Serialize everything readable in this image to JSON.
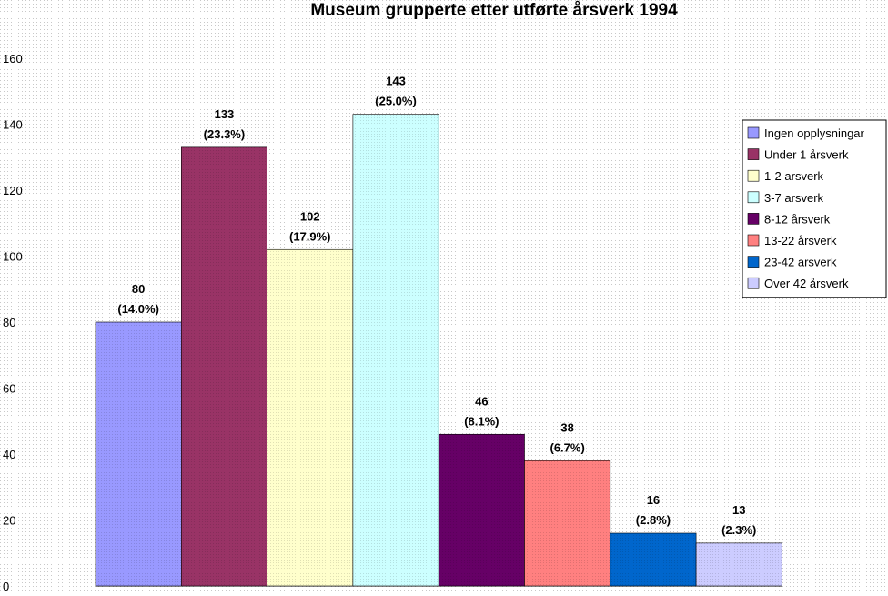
{
  "chart_data": {
    "type": "bar",
    "title": "Museum grupperte etter utførte årsverk 1994",
    "xlabel": "",
    "ylabel": "",
    "ylim": [
      0,
      160
    ],
    "yticks": [
      0,
      20,
      40,
      60,
      80,
      100,
      120,
      140,
      160
    ],
    "grid": "dotted background",
    "legend_position": "right",
    "categories": [
      "Ingen opplysningar",
      "Under 1 årsverk",
      "1-2 arsverk",
      "3-7 arsverk",
      "8-12 årsverk",
      "13-22 årsverk",
      "23-42 arsverk",
      "Over 42 årsverk"
    ],
    "values": [
      80,
      133,
      102,
      143,
      46,
      38,
      16,
      13
    ],
    "percent_labels": [
      "(14.0%)",
      "(23.3%)",
      "(17.9%)",
      "(25.0%)",
      "(8.1%)",
      "(6.7%)",
      "(2.8%)",
      "(2.3%)"
    ],
    "colors": [
      "#9999ff",
      "#993366",
      "#ffffcc",
      "#ccffff",
      "#660066",
      "#ff8080",
      "#0066cc",
      "#ccccff"
    ]
  }
}
